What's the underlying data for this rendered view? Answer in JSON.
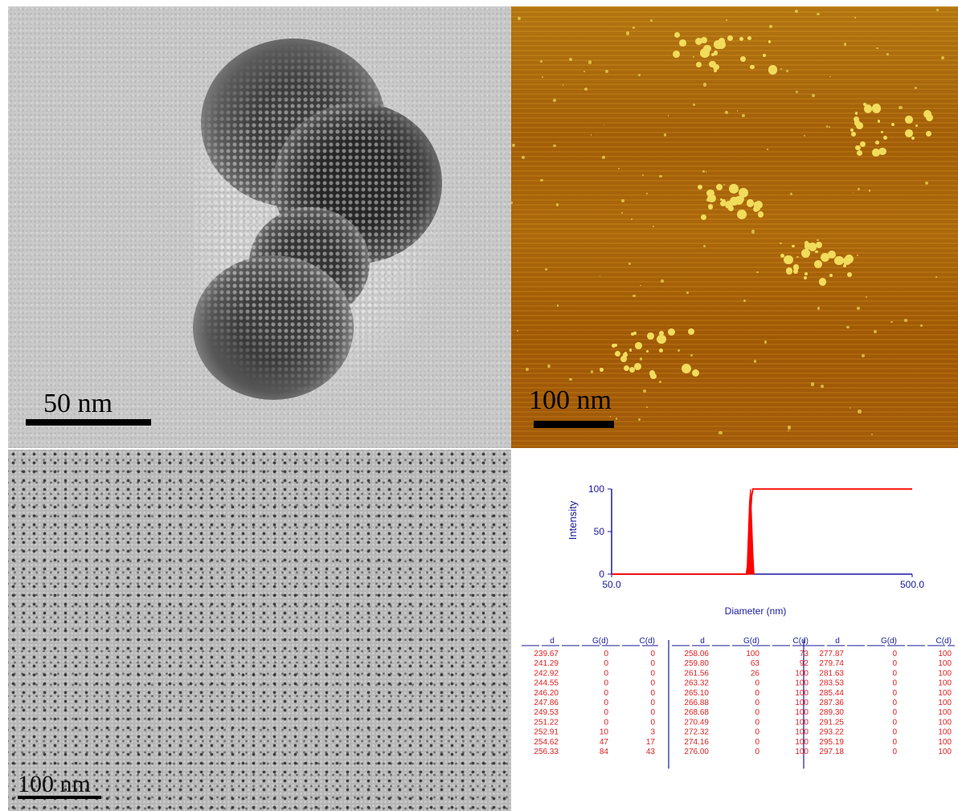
{
  "panels": {
    "tem_aggregate": {
      "scale_label": "50 nm"
    },
    "afm": {
      "scale_label": "100 nm"
    },
    "tem_dispersed": {
      "scale_label": "100 nm"
    }
  },
  "colors": {
    "series": "#ff0000",
    "axis": "#1a1a9a",
    "table_text": "#e02020"
  },
  "chart_data": {
    "type": "area",
    "title": "",
    "xlabel": "Diameter (nm)",
    "ylabel": "Intensity",
    "x_ticks": [
      "50.0",
      "500.0"
    ],
    "y_ticks": [
      "0",
      "50",
      "100"
    ],
    "xlim": [
      50,
      500
    ],
    "ylim": [
      0,
      100
    ],
    "series": [
      {
        "x": [
          252.91,
          254.62,
          256.33,
          258.06,
          259.8,
          261.56,
          263.32
        ],
        "y": [
          3,
          17,
          43,
          73,
          92,
          100,
          100
        ]
      },
      {
        "x": [
          251.22,
          252.91,
          254.62,
          256.33,
          258.06,
          259.8,
          261.56,
          263.32
        ],
        "y": [
          0,
          10,
          47,
          84,
          100,
          63,
          26,
          0
        ]
      }
    ]
  },
  "table": {
    "headers": [
      "d",
      "G(d)",
      "C(d)"
    ],
    "columns": [
      {
        "rows": [
          [
            "239.67",
            "0",
            "0"
          ],
          [
            "241.29",
            "0",
            "0"
          ],
          [
            "242.92",
            "0",
            "0"
          ],
          [
            "244.55",
            "0",
            "0"
          ],
          [
            "246.20",
            "0",
            "0"
          ],
          [
            "247.86",
            "0",
            "0"
          ],
          [
            "249.53",
            "0",
            "0"
          ],
          [
            "251.22",
            "0",
            "0"
          ],
          [
            "252.91",
            "10",
            "3"
          ],
          [
            "254.62",
            "47",
            "17"
          ],
          [
            "256.33",
            "84",
            "43"
          ]
        ]
      },
      {
        "rows": [
          [
            "258.06",
            "100",
            "73"
          ],
          [
            "259.80",
            "63",
            "92"
          ],
          [
            "261.56",
            "26",
            "100"
          ],
          [
            "263.32",
            "0",
            "100"
          ],
          [
            "265.10",
            "0",
            "100"
          ],
          [
            "266.88",
            "0",
            "100"
          ],
          [
            "268.68",
            "0",
            "100"
          ],
          [
            "270.49",
            "0",
            "100"
          ],
          [
            "272.32",
            "0",
            "100"
          ],
          [
            "274.16",
            "0",
            "100"
          ],
          [
            "276.00",
            "0",
            "100"
          ]
        ]
      },
      {
        "rows": [
          [
            "277.87",
            "0",
            "100"
          ],
          [
            "279.74",
            "0",
            "100"
          ],
          [
            "281.63",
            "0",
            "100"
          ],
          [
            "283.53",
            "0",
            "100"
          ],
          [
            "285.44",
            "0",
            "100"
          ],
          [
            "287.36",
            "0",
            "100"
          ],
          [
            "289.30",
            "0",
            "100"
          ],
          [
            "291.25",
            "0",
            "100"
          ],
          [
            "293.22",
            "0",
            "100"
          ],
          [
            "295.19",
            "0",
            "100"
          ],
          [
            "297.18",
            "0",
            "100"
          ]
        ]
      }
    ]
  }
}
